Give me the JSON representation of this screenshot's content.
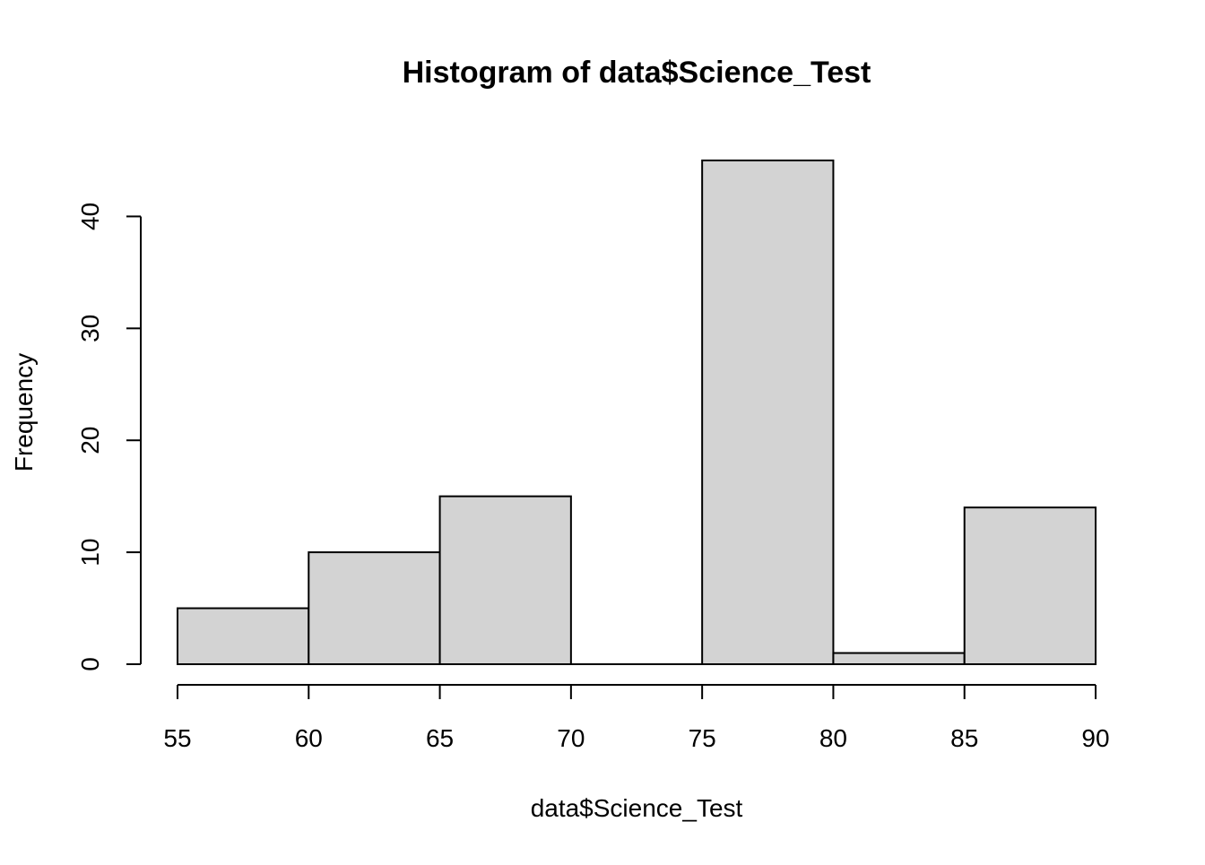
{
  "chart_data": {
    "type": "bar",
    "title": "Histogram of data$Science_Test",
    "xlabel": "data$Science_Test",
    "ylabel": "Frequency",
    "bins": [
      {
        "start": 55,
        "end": 60,
        "count": 5
      },
      {
        "start": 60,
        "end": 65,
        "count": 10
      },
      {
        "start": 65,
        "end": 70,
        "count": 15
      },
      {
        "start": 70,
        "end": 75,
        "count": 0
      },
      {
        "start": 75,
        "end": 80,
        "count": 45
      },
      {
        "start": 80,
        "end": 85,
        "count": 1
      },
      {
        "start": 85,
        "end": 90,
        "count": 14
      }
    ],
    "xlim": [
      55,
      90
    ],
    "ylim": [
      0,
      45
    ],
    "x_ticks": [
      55,
      60,
      65,
      70,
      75,
      80,
      85,
      90
    ],
    "y_ticks": [
      0,
      10,
      20,
      30,
      40
    ],
    "grid": false,
    "bar_fill": "#d3d3d3",
    "bar_stroke": "#000000"
  }
}
